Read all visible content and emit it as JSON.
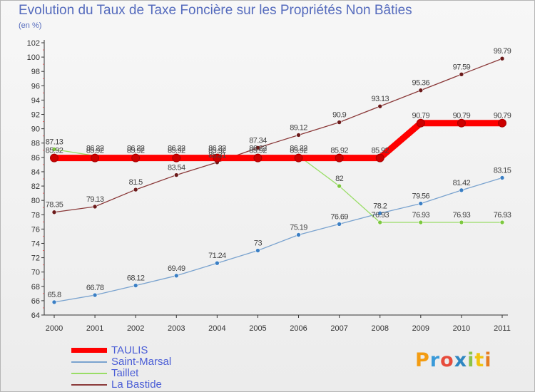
{
  "chart_data": {
    "type": "line",
    "title": "Evolution du Taux de Taxe Foncière sur les Propriétés Non Bâties",
    "ylabel": "(en %)",
    "xlabel": "",
    "categories": [
      "2000",
      "2001",
      "2002",
      "2003",
      "2004",
      "2005",
      "2006",
      "2007",
      "2008",
      "2009",
      "2010",
      "2011"
    ],
    "ylim": [
      64,
      102
    ],
    "yticks": [
      64,
      66,
      68,
      70,
      72,
      74,
      76,
      78,
      80,
      82,
      84,
      86,
      88,
      90,
      92,
      94,
      96,
      98,
      100,
      102
    ],
    "grid": false,
    "legend_position": "bottom-left",
    "series": [
      {
        "name": "TAULIS",
        "color": "#ff0000",
        "marker": "#cc0000",
        "values": [
          85.92,
          85.92,
          85.92,
          85.92,
          85.92,
          85.92,
          85.92,
          85.92,
          85.92,
          90.79,
          90.79,
          90.79
        ],
        "labels": [
          "85.92",
          "85.92",
          "85.92",
          "85.92",
          "85.92",
          "85.92",
          "85.92",
          "85.92",
          "85.92",
          "90.79",
          "90.79",
          "90.79"
        ]
      },
      {
        "name": "Saint-Marsal",
        "color": "#7aa3cf",
        "marker": "#3b7fc4",
        "values": [
          65.8,
          66.78,
          68.12,
          69.49,
          71.24,
          73,
          75.19,
          76.69,
          78.2,
          79.56,
          81.42,
          83.15
        ],
        "labels": [
          "65.8",
          "66.78",
          "68.12",
          "69.49",
          "71.24",
          "73",
          "75.19",
          "76.69",
          "78.2",
          "79.56",
          "81.42",
          "83.15"
        ]
      },
      {
        "name": "Taillet",
        "color": "#99dd66",
        "marker": "#7dc83f",
        "values": [
          87.13,
          86.22,
          86.22,
          86.22,
          86.22,
          86.22,
          86.22,
          82,
          76.93,
          76.93,
          76.93,
          76.93
        ],
        "labels": [
          "87.13",
          "86.22",
          "86.22",
          "86.22",
          "86.22",
          "86.22",
          "86.22",
          "82",
          "76.93",
          "76.93",
          "76.93",
          "76.93"
        ]
      },
      {
        "name": "La Bastide",
        "color": "#8b3a3a",
        "marker": "#6b1a1a",
        "values": [
          78.35,
          79.13,
          81.5,
          83.54,
          85.31,
          87.34,
          89.12,
          90.9,
          93.13,
          95.36,
          97.59,
          99.79
        ],
        "labels": [
          "78.35",
          "79.13",
          "81.5",
          "83.54",
          "85.31",
          "87.34",
          "89.12",
          "90.9",
          "93.13",
          "95.36",
          "97.59",
          "99.79"
        ]
      }
    ]
  },
  "logo": {
    "letters": [
      "P",
      "r",
      "o",
      "x",
      "i",
      "t",
      "i"
    ],
    "colors": [
      "#f39c12",
      "#3a9ad9",
      "#e74c3c",
      "#2e86c1",
      "#8bc34a",
      "#f1c40f",
      "#e67e22"
    ]
  }
}
